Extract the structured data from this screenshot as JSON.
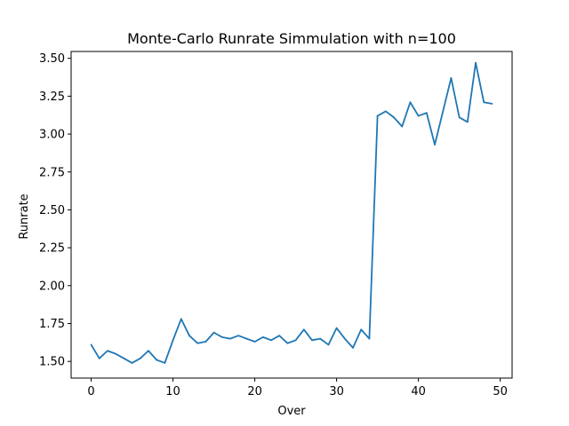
{
  "chart_data": {
    "type": "line",
    "title": "Monte-Carlo Runrate Simmulation with n=100",
    "xlabel": "Over",
    "ylabel": "Runrate",
    "xlim": [
      -2.45,
      51.45
    ],
    "ylim": [
      1.39,
      3.545
    ],
    "xticks": [
      0,
      10,
      20,
      30,
      40,
      50
    ],
    "yticks": [
      1.5,
      1.75,
      2.0,
      2.25,
      2.5,
      2.75,
      3.0,
      3.25,
      3.5
    ],
    "ytick_labels": [
      "1.50",
      "1.75",
      "2.00",
      "2.25",
      "2.50",
      "2.75",
      "3.00",
      "3.25",
      "3.50"
    ],
    "grid": false,
    "series": [
      {
        "color": "#1f77b4",
        "x": [
          0,
          1,
          2,
          3,
          4,
          5,
          6,
          7,
          8,
          9,
          10,
          11,
          12,
          13,
          14,
          15,
          16,
          17,
          18,
          19,
          20,
          21,
          22,
          23,
          24,
          25,
          26,
          27,
          28,
          29,
          30,
          31,
          32,
          33,
          34,
          35,
          36,
          37,
          38,
          39,
          40,
          41,
          42,
          43,
          44,
          45,
          46,
          47,
          48,
          49
        ],
        "y": [
          1.61,
          1.52,
          1.57,
          1.55,
          1.52,
          1.49,
          1.52,
          1.57,
          1.51,
          1.49,
          1.64,
          1.78,
          1.67,
          1.62,
          1.63,
          1.69,
          1.66,
          1.65,
          1.67,
          1.65,
          1.63,
          1.66,
          1.64,
          1.67,
          1.62,
          1.64,
          1.71,
          1.64,
          1.65,
          1.61,
          1.72,
          1.65,
          1.59,
          1.71,
          1.65,
          3.12,
          3.15,
          3.11,
          3.05,
          3.21,
          3.12,
          3.14,
          2.93,
          3.15,
          3.37,
          3.11,
          3.08,
          3.47,
          3.21,
          3.2
        ]
      }
    ]
  }
}
